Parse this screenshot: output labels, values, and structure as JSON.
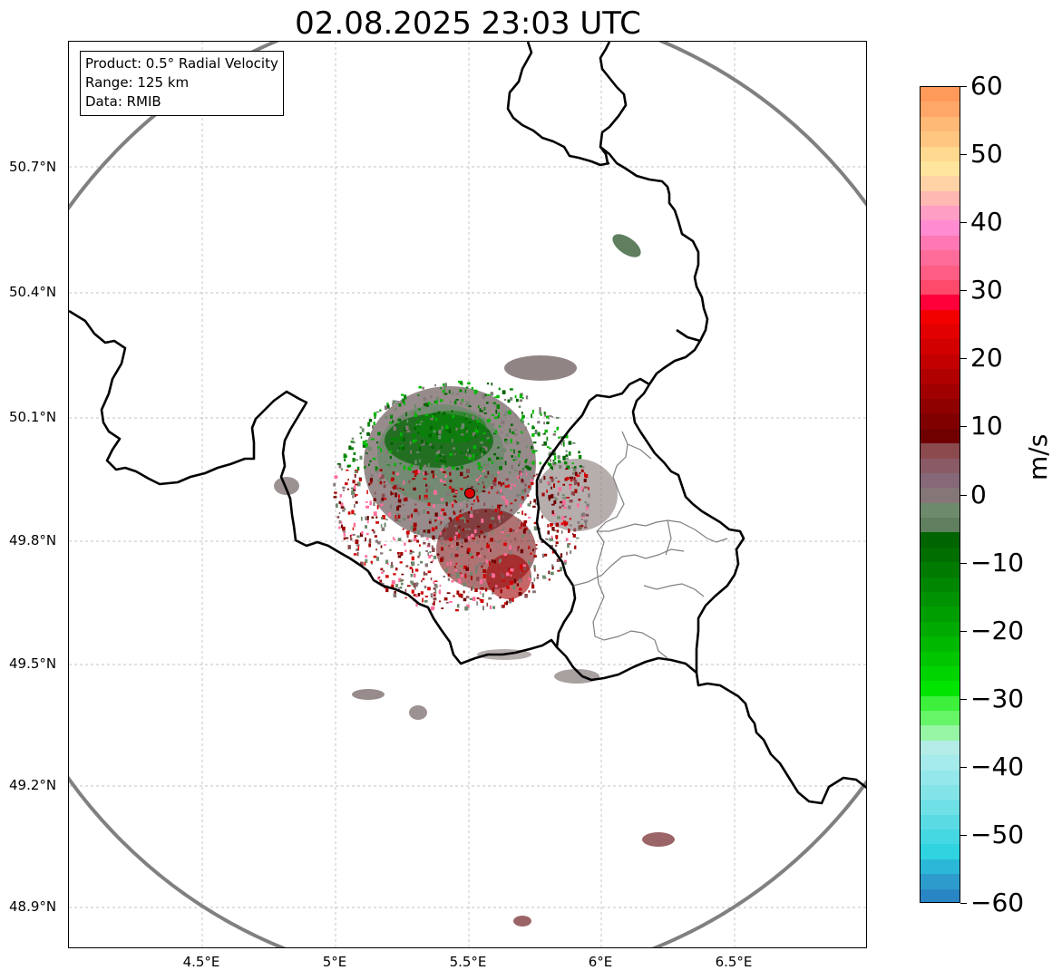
{
  "title": "02.08.2025 23:03 UTC",
  "info_box": {
    "product": "Product: 0.5° Radial Velocity",
    "range": "Range: 125 km",
    "source": "Data: RMIB"
  },
  "axes": {
    "lat_ticks": [
      "50.7°N",
      "50.4°N",
      "50.1°N",
      "49.8°N",
      "49.5°N",
      "49.2°N",
      "48.9°N"
    ],
    "lon_ticks": [
      "4.5°E",
      "5°E",
      "5.5°E",
      "6°E",
      "6.5°E"
    ]
  },
  "colorbar": {
    "label": "m/s",
    "ticks": [
      "60",
      "50",
      "40",
      "30",
      "20",
      "10",
      "0",
      "−10",
      "−20",
      "−30",
      "−40",
      "−50",
      "−60"
    ],
    "colors": [
      "#ff9a5a",
      "#ffa768",
      "#ffb976",
      "#ffc682",
      "#ffd98f",
      "#ffe59d",
      "#ffd3a6",
      "#ffb8b2",
      "#ff9ec4",
      "#ff8bd0",
      "#ff78b3",
      "#ff6c9a",
      "#ff5d83",
      "#ff4a6c",
      "#ff003a",
      "#f20000",
      "#e20000",
      "#d30000",
      "#c20000",
      "#b00000",
      "#a00000",
      "#8f0000",
      "#800000",
      "#700000",
      "#8a4a4e",
      "#8a5b66",
      "#866878",
      "#857777",
      "#6d8a6d",
      "#5f7f5f",
      "#006400",
      "#006e00",
      "#007a00",
      "#008600",
      "#009200",
      "#009e00",
      "#00aa00",
      "#00b800",
      "#00c600",
      "#00d400",
      "#00e400",
      "#3cf03c",
      "#66f566",
      "#97f5a6",
      "#b4ece8",
      "#a5ebec",
      "#94e7ea",
      "#83e4e8",
      "#6fe0e6",
      "#5adbe4",
      "#45d7e2",
      "#2fd4e0",
      "#2bb8d8",
      "#2d9ccc",
      "#2a85c4"
    ]
  },
  "radar": {
    "site_marker": "radar-site"
  }
}
